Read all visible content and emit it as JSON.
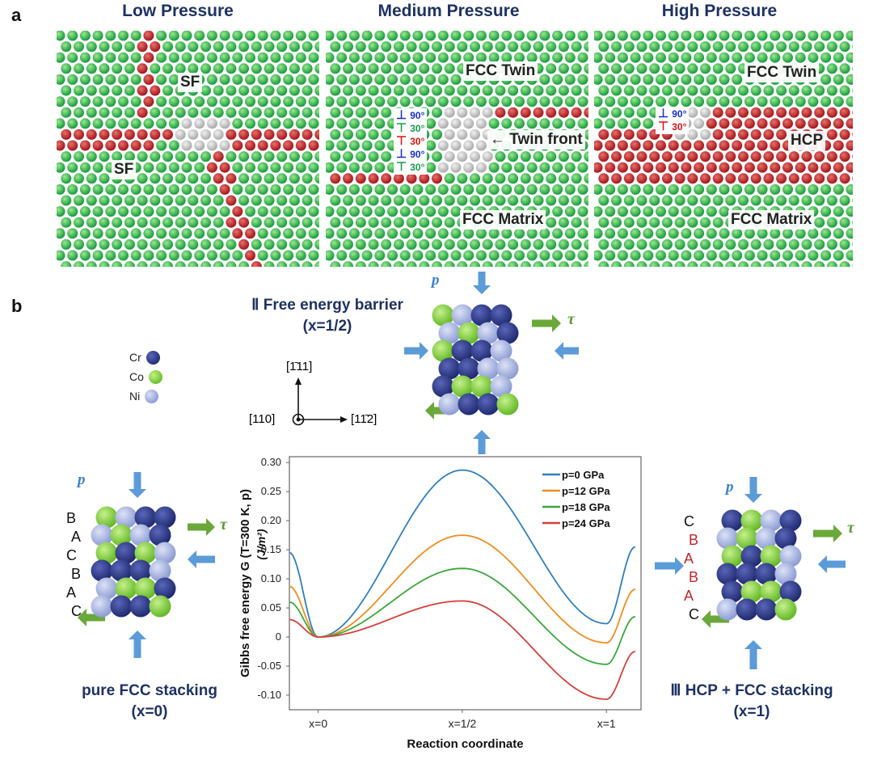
{
  "panel_a": {
    "letter": "a",
    "titles": [
      "Low Pressure",
      "Medium Pressure",
      "High Pressure"
    ],
    "low_labels": [
      "SF",
      "SF"
    ],
    "medium_labels": {
      "twin": "FCC Twin",
      "front": "Twin front",
      "matrix": "FCC Matrix"
    },
    "high_labels": {
      "twin": "FCC Twin",
      "hcp": "HCP",
      "matrix": "FCC Matrix"
    },
    "medium_dislocations": [
      {
        "symbol": "⊥",
        "angle": "90°",
        "color": "#1a2fd0"
      },
      {
        "symbol": "⊤",
        "angle": "30°",
        "color": "#1a9a50"
      },
      {
        "symbol": "⊤",
        "angle": "30°",
        "color": "#e01010"
      },
      {
        "symbol": "⊥",
        "angle": "90°",
        "color": "#1a2fd0"
      },
      {
        "symbol": "⊤",
        "angle": "30°",
        "color": "#1a9a50"
      }
    ],
    "high_dislocations": [
      {
        "symbol": "⊥",
        "angle": "90°",
        "color": "#1a2fd0"
      },
      {
        "symbol": "⊤",
        "angle": "30°",
        "color": "#e01010"
      }
    ]
  },
  "panel_b": {
    "letter": "b",
    "legend": [
      {
        "name": "Cr",
        "color": "#23307a"
      },
      {
        "name": "Co",
        "color": "#7ed23a"
      },
      {
        "name": "Ni",
        "color": "#9aa9dc"
      }
    ],
    "axes_labels": {
      "up": "[1̄11]",
      "right": "[11̄2]",
      "out": "[110]"
    },
    "state_left": {
      "line1": "pure FCC stacking",
      "line2": "(x=0)",
      "stacking": [
        "B",
        "A",
        "C",
        "B",
        "A",
        "C"
      ]
    },
    "state_top": {
      "line1": "Ⅱ Free energy barrier",
      "line2": "(x=1/2)"
    },
    "state_right": {
      "line1": "Ⅲ HCP + FCC stacking",
      "line2": "(x=1)",
      "stacking": [
        "C",
        "B",
        "A",
        "B",
        "A",
        "C"
      ],
      "stacking_colors": [
        "#111",
        "#c0262d",
        "#c0262d",
        "#c0262d",
        "#c0262d",
        "#111"
      ]
    },
    "force_labels": {
      "p": "p",
      "tau": "τ"
    }
  },
  "chart_data": {
    "type": "line",
    "xlabel": "Reaction coordinate",
    "ylabel": "Gibbs free energy  G (T=300 K, p) (J/m²)",
    "ylabel_line1": "Gibbs free energy  G (T=300 K, p)",
    "ylabel_line2": "(J/m²)",
    "x_ticks": [
      {
        "x": 0,
        "label": "x=0"
      },
      {
        "x": 0.5,
        "label": "x=1/2"
      },
      {
        "x": 1,
        "label": "x=1"
      }
    ],
    "y_ticks": [
      "0.30",
      "0.25",
      "0.20",
      "0.15",
      "0.10",
      "0.05",
      "0",
      "-0.05",
      "-0.10"
    ],
    "xlim": [
      -0.1,
      1.12
    ],
    "ylim": [
      -0.125,
      0.31
    ],
    "legend_position": "top-right",
    "series": [
      {
        "name": "p=0 GPa",
        "color": "#2f7fc0",
        "x": [
          -0.1,
          0,
          0.5,
          1,
          1.1
        ],
        "y": [
          0.145,
          0,
          0.287,
          0.023,
          0.155
        ]
      },
      {
        "name": "p=12 GPa",
        "color": "#f28c1e",
        "x": [
          -0.1,
          0,
          0.5,
          1,
          1.1
        ],
        "y": [
          0.087,
          0,
          0.175,
          -0.01,
          0.082
        ]
      },
      {
        "name": "p=18 GPa",
        "color": "#3aa83a",
        "x": [
          -0.1,
          0,
          0.5,
          1,
          1.1
        ],
        "y": [
          0.06,
          0,
          0.118,
          -0.047,
          0.035
        ]
      },
      {
        "name": "p=24 GPa",
        "color": "#d6403a",
        "x": [
          -0.1,
          0,
          0.5,
          1,
          1.1
        ],
        "y": [
          0.03,
          0,
          0.062,
          -0.107,
          -0.025
        ]
      }
    ]
  }
}
